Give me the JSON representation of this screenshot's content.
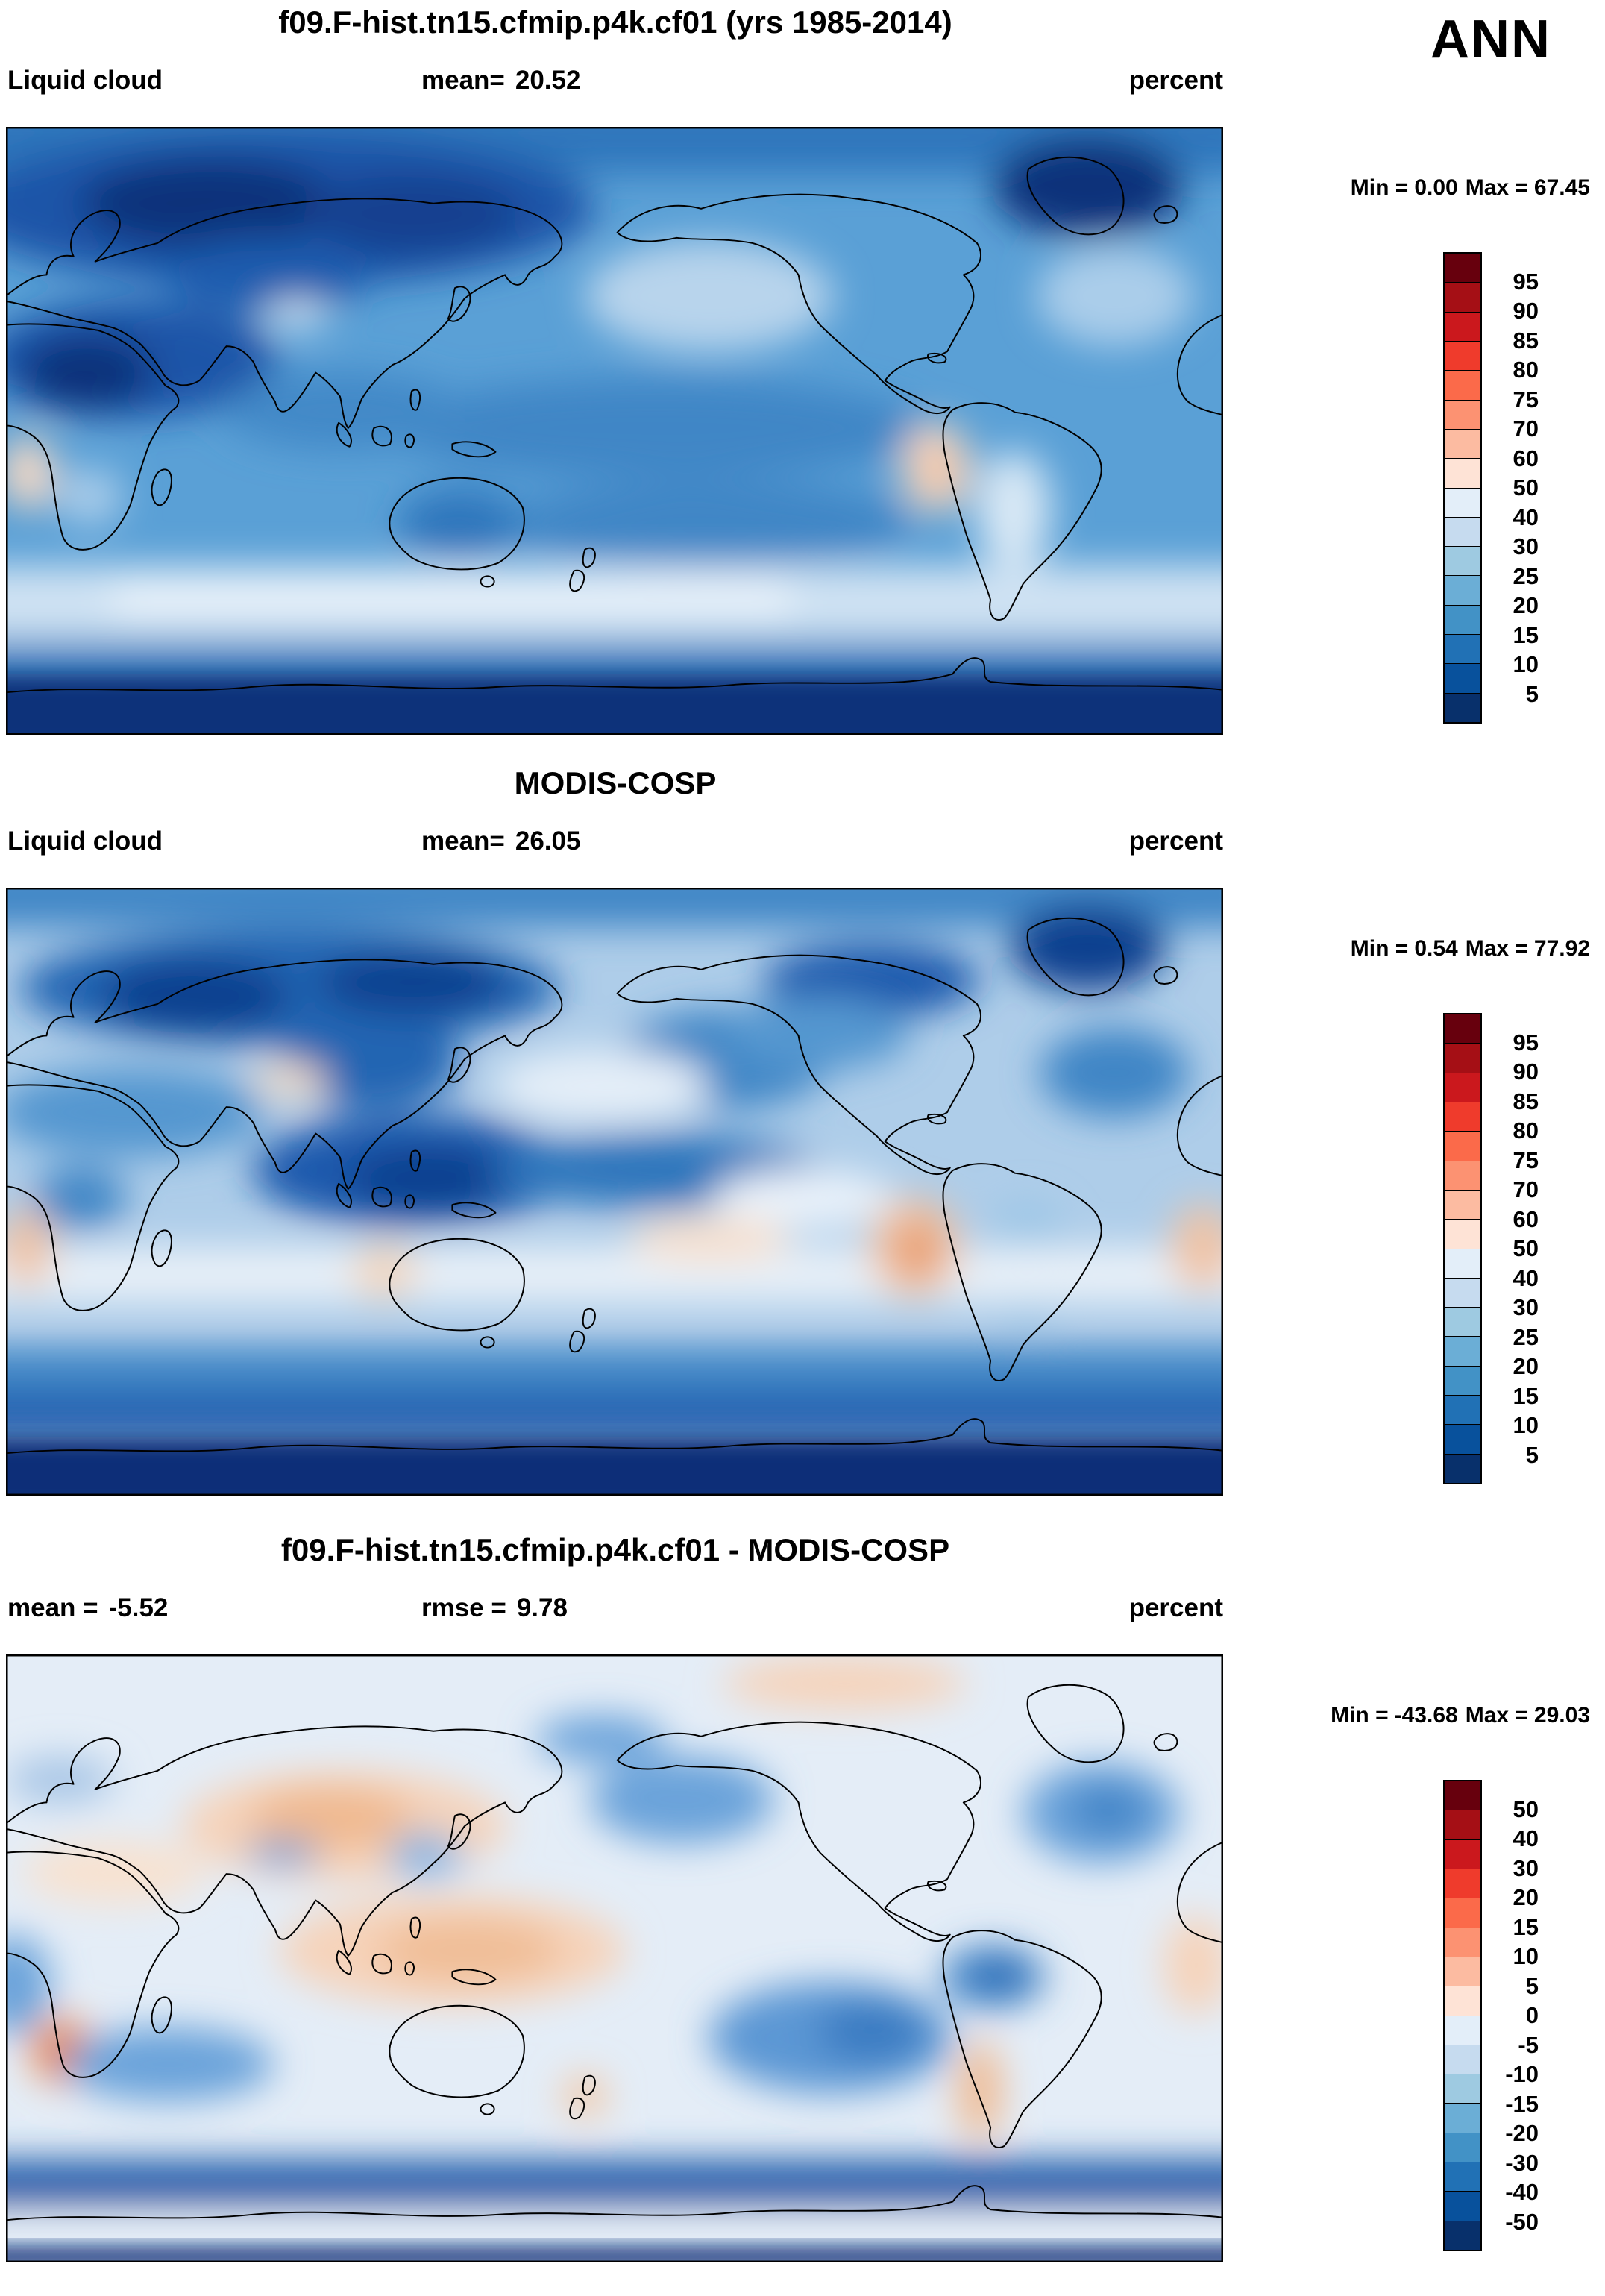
{
  "season": "ANN",
  "panels": [
    {
      "title": "f09.F-hist.tn15.cfmip.p4k.cf01 (yrs 1985-2014)",
      "stats": {
        "left_label": "Liquid cloud",
        "left_value": "",
        "center_label": "mean=",
        "center_value": "20.52",
        "right_label": "percent"
      },
      "min_label": "Min =",
      "min_value": "0.00",
      "max_label": "Max =",
      "max_value": "67.45",
      "colorbar": {
        "ticks": [
          "95",
          "90",
          "85",
          "80",
          "75",
          "70",
          "60",
          "50",
          "40",
          "30",
          "25",
          "20",
          "15",
          "10",
          "5"
        ],
        "colors": [
          "#67000d",
          "#a50f15",
          "#cb181d",
          "#ef3b2c",
          "#fb6a4a",
          "#fc9272",
          "#fcbba1",
          "#fee3d6",
          "#e3eef9",
          "#c6dbef",
          "#9ecae1",
          "#6baed6",
          "#4292c6",
          "#2171b5",
          "#08519c",
          "#08306b"
        ]
      }
    },
    {
      "title": "MODIS-COSP",
      "stats": {
        "left_label": "Liquid cloud",
        "left_value": "",
        "center_label": "mean=",
        "center_value": "26.05",
        "right_label": "percent"
      },
      "min_label": "Min =",
      "min_value": "0.54",
      "max_label": "Max =",
      "max_value": "77.92",
      "colorbar": {
        "ticks": [
          "95",
          "90",
          "85",
          "80",
          "75",
          "70",
          "60",
          "50",
          "40",
          "30",
          "25",
          "20",
          "15",
          "10",
          "5"
        ],
        "colors": [
          "#67000d",
          "#a50f15",
          "#cb181d",
          "#ef3b2c",
          "#fb6a4a",
          "#fc9272",
          "#fcbba1",
          "#fee3d6",
          "#e3eef9",
          "#c6dbef",
          "#9ecae1",
          "#6baed6",
          "#4292c6",
          "#2171b5",
          "#08519c",
          "#08306b"
        ]
      }
    },
    {
      "title": "f09.F-hist.tn15.cfmip.p4k.cf01 - MODIS-COSP",
      "stats": {
        "left_label": "mean =",
        "left_value": "-5.52",
        "center_label": "rmse =",
        "center_value": "9.78",
        "right_label": "percent"
      },
      "min_label": "Min =",
      "min_value": "-43.68",
      "max_label": "Max =",
      "max_value": "29.03",
      "colorbar": {
        "ticks": [
          "50",
          "40",
          "30",
          "20",
          "15",
          "10",
          "5",
          "0",
          "-5",
          "-10",
          "-15",
          "-20",
          "-30",
          "-40",
          "-50"
        ],
        "colors": [
          "#67000d",
          "#a50f15",
          "#cb181d",
          "#ef3b2c",
          "#fb6a4a",
          "#fc9272",
          "#fcbba1",
          "#fee3d6",
          "#e3eef9",
          "#c6dbef",
          "#9ecae1",
          "#6baed6",
          "#4292c6",
          "#2171b5",
          "#08519c",
          "#08306b"
        ]
      }
    }
  ],
  "chart_data": [
    {
      "type": "heatmap",
      "subtype": "filled-contour-global-map",
      "title": "f09.F-hist.tn15.cfmip.p4k.cf01 (yrs 1985-2014)",
      "variable": "Liquid cloud",
      "season": "ANN",
      "units": "percent",
      "stats": {
        "mean": 20.52,
        "min": 0.0,
        "max": 67.45
      },
      "contour_levels": [
        5,
        10,
        15,
        20,
        25,
        30,
        40,
        50,
        60,
        70,
        75,
        80,
        85,
        90,
        95
      ],
      "palette_top_to_bottom": [
        "#67000d",
        "#a50f15",
        "#cb181d",
        "#ef3b2c",
        "#fb6a4a",
        "#fc9272",
        "#fcbba1",
        "#fee3d6",
        "#e3eef9",
        "#c6dbef",
        "#9ecae1",
        "#6baed6",
        "#4292c6",
        "#2171b5",
        "#08519c",
        "#08306b"
      ],
      "projection": "equirectangular 0-360E, 90N-90S",
      "legend_position": "right"
    },
    {
      "type": "heatmap",
      "subtype": "filled-contour-global-map",
      "title": "MODIS-COSP",
      "variable": "Liquid cloud",
      "season": "ANN",
      "units": "percent",
      "stats": {
        "mean": 26.05,
        "min": 0.54,
        "max": 77.92
      },
      "contour_levels": [
        5,
        10,
        15,
        20,
        25,
        30,
        40,
        50,
        60,
        70,
        75,
        80,
        85,
        90,
        95
      ],
      "projection": "equirectangular 0-360E, 90N-90S",
      "legend_position": "right"
    },
    {
      "type": "heatmap",
      "subtype": "difference-global-map",
      "title": "f09.F-hist.tn15.cfmip.p4k.cf01 - MODIS-COSP",
      "variable": "Liquid cloud difference",
      "season": "ANN",
      "units": "percent",
      "stats": {
        "mean": -5.52,
        "rmse": 9.78,
        "min": -43.68,
        "max": 29.03
      },
      "contour_levels": [
        -50,
        -40,
        -30,
        -20,
        -15,
        -10,
        -5,
        0,
        5,
        10,
        15,
        20,
        30,
        40,
        50
      ],
      "projection": "equirectangular 0-360E, 90N-90S",
      "legend_position": "right"
    }
  ]
}
